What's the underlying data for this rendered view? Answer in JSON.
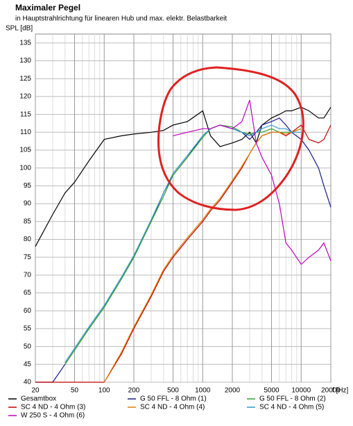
{
  "chart_data": {
    "type": "line",
    "title": "Maximaler Pegel",
    "subtitle": "in Hauptstrahlrichtung für linearen Hub und max. elektr. Belastbarkeit",
    "y_label": "SPL [dB]",
    "x_label": "f [Hz]",
    "log_x": true,
    "grid": true,
    "legend": "bottom",
    "xlim": [
      20,
      20000
    ],
    "ylim": [
      40,
      137.5
    ],
    "xticks": [
      20,
      50,
      100,
      200,
      500,
      1000,
      2000,
      5000,
      10000,
      20000
    ],
    "xgrid_minor": [
      30,
      40,
      60,
      70,
      80,
      90,
      300,
      400,
      600,
      700,
      800,
      900,
      3000,
      4000,
      6000,
      7000,
      8000,
      9000
    ],
    "yticks": [
      40,
      45,
      50,
      55,
      60,
      65,
      70,
      75,
      80,
      85,
      90,
      95,
      100,
      105,
      110,
      115,
      120,
      125,
      130,
      135
    ],
    "x": [
      20,
      30,
      40,
      50,
      70,
      100,
      150,
      200,
      300,
      400,
      500,
      700,
      1000,
      1200,
      1500,
      2000,
      2500,
      3000,
      3500,
      4000,
      5000,
      6000,
      7000,
      8000,
      10000,
      12000,
      15000,
      17000,
      20000
    ],
    "series": [
      {
        "name": "Gesamtbox",
        "color": "#000000",
        "values": [
          78,
          87,
          93,
          96,
          102,
          108,
          109,
          109.5,
          110,
          110.5,
          112,
          113,
          116,
          109,
          106,
          107,
          108,
          110,
          107,
          112,
          114,
          115,
          116,
          116,
          117,
          116,
          114,
          114,
          117
        ]
      },
      {
        "name": "G 50 FFL - 8 Ohm (1)",
        "color": "#1a1a8c",
        "values": [
          40,
          40,
          45,
          49,
          55,
          61,
          69,
          75,
          85,
          93,
          98,
          103,
          109,
          111,
          112,
          111,
          110,
          108,
          110,
          112,
          113,
          114,
          112,
          110,
          108,
          105,
          100,
          95,
          89
        ]
      },
      {
        "name": "G 50 FFL - 8 Ohm (2)",
        "color": "#33a02c",
        "values": [
          null,
          null,
          45,
          49,
          55,
          61,
          69,
          75,
          85,
          92,
          98,
          103,
          108.5,
          111,
          112,
          111.5,
          110,
          109.5,
          110,
          110,
          111,
          110,
          110,
          110,
          111,
          null,
          null,
          null,
          null
        ]
      },
      {
        "name": "SC 4 ND - 4 Ohm (3)",
        "color": "#c00000",
        "values": [
          40,
          40,
          40,
          40,
          40,
          40,
          48,
          55,
          64,
          71,
          75,
          80,
          85,
          88,
          91,
          96,
          100,
          104,
          107,
          109,
          110,
          110,
          109,
          110,
          112,
          108,
          107,
          108,
          112
        ]
      },
      {
        "name": "SC 4 ND - 4 Ohm (4)",
        "color": "#e08000",
        "values": [
          null,
          null,
          null,
          null,
          null,
          40,
          48.5,
          55.5,
          64.5,
          71.5,
          75.5,
          80.5,
          85.5,
          88.5,
          91.5,
          96.5,
          100.5,
          104,
          107,
          109,
          110,
          110,
          109.5,
          110,
          111,
          null,
          null,
          null,
          null
        ]
      },
      {
        "name": "SC 4 ND - 4 Ohm (5)",
        "color": "#3399cc",
        "values": [
          null,
          null,
          45.5,
          49.5,
          55.5,
          61.5,
          69.5,
          75.5,
          85.5,
          93,
          98.5,
          103.5,
          109,
          111,
          112,
          111,
          110,
          109,
          110,
          111,
          112,
          111,
          111,
          110,
          110,
          null,
          null,
          null,
          null
        ]
      },
      {
        "name": "W 250 S - 4 Ohm (6)",
        "color": "#c000c0",
        "values": [
          null,
          null,
          null,
          null,
          null,
          null,
          null,
          null,
          null,
          null,
          109,
          110,
          111,
          111,
          112,
          111,
          113,
          119,
          107,
          103,
          98,
          90,
          79,
          77,
          73,
          75,
          77,
          79,
          74
        ]
      }
    ]
  }
}
